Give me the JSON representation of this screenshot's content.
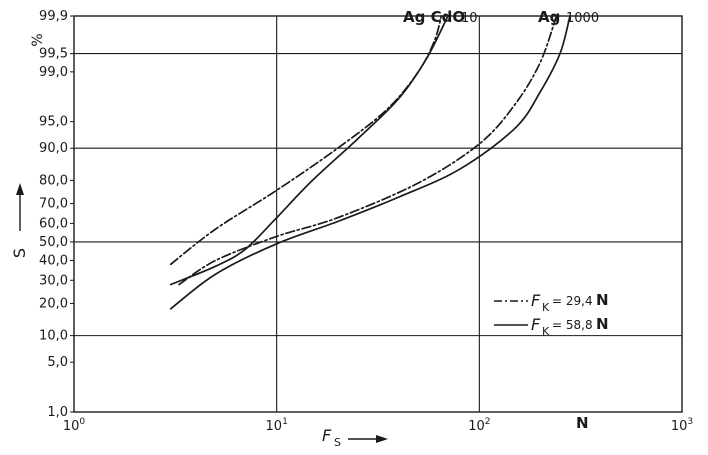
{
  "chart_data": {
    "type": "line",
    "title": "",
    "xscale": "log",
    "yscale": "probability",
    "xlim": [
      1,
      1000
    ],
    "ylim": [
      1.0,
      99.9
    ],
    "grid": true,
    "x_ticks": [
      {
        "value": 1,
        "base": "10",
        "exp": "0"
      },
      {
        "value": 10,
        "base": "10",
        "exp": "1"
      },
      {
        "value": 100,
        "base": "10",
        "exp": "2"
      },
      {
        "value": 1000,
        "base": "10",
        "exp": "3"
      }
    ],
    "y_ticks": [
      {
        "value": 1.0,
        "label": "1,0"
      },
      {
        "value": 5.0,
        "label": "5,0"
      },
      {
        "value": 10.0,
        "label": "10,0"
      },
      {
        "value": 20.0,
        "label": "20,0"
      },
      {
        "value": 30.0,
        "label": "30,0"
      },
      {
        "value": 40.0,
        "label": "40,0"
      },
      {
        "value": 50.0,
        "label": "50,0"
      },
      {
        "value": 60.0,
        "label": "60,0"
      },
      {
        "value": 70.0,
        "label": "70,0"
      },
      {
        "value": 80.0,
        "label": "80,0"
      },
      {
        "value": 90.0,
        "label": "90,0"
      },
      {
        "value": 95.0,
        "label": "95,0"
      },
      {
        "value": 99.0,
        "label": "99,0"
      },
      {
        "value": 99.5,
        "label": "99,5"
      },
      {
        "value": 99.9,
        "label": "99,9"
      }
    ],
    "y_gridlines": [
      10,
      50,
      90,
      99.5
    ],
    "x_gridlines": [
      10,
      100
    ],
    "xlabel": {
      "main": "F",
      "sub": "S"
    },
    "x_unit": "N",
    "ylabel": "S",
    "y_unit": "%",
    "series": [
      {
        "name": "Ag CdO 10",
        "style": "dashdot",
        "load": "29,4",
        "points": [
          [
            3,
            38
          ],
          [
            5,
            57
          ],
          [
            10,
            76
          ],
          [
            20,
            90
          ],
          [
            35,
            96.5
          ],
          [
            50,
            99
          ],
          [
            60,
            99.7
          ],
          [
            65,
            99.9
          ]
        ]
      },
      {
        "name": "Ag CdO 10",
        "style": "solid",
        "load": "58,8",
        "points": [
          [
            3,
            28
          ],
          [
            5,
            37
          ],
          [
            7,
            46
          ],
          [
            10,
            63
          ],
          [
            15,
            80
          ],
          [
            25,
            92
          ],
          [
            40,
            97.5
          ],
          [
            55,
            99.4
          ],
          [
            70,
            99.9
          ]
        ]
      },
      {
        "name": "Ag 1000",
        "style": "dashdot",
        "load": "29,4",
        "points": [
          [
            3.3,
            28
          ],
          [
            5,
            40
          ],
          [
            10,
            53
          ],
          [
            20,
            63
          ],
          [
            50,
            79
          ],
          [
            100,
            91
          ],
          [
            150,
            97
          ],
          [
            200,
            99.3
          ],
          [
            240,
            99.9
          ]
        ]
      },
      {
        "name": "Ag 1000",
        "style": "solid",
        "load": "58,8",
        "points": [
          [
            3,
            18
          ],
          [
            5,
            33
          ],
          [
            10,
            49
          ],
          [
            20,
            61
          ],
          [
            40,
            73
          ],
          [
            80,
            84
          ],
          [
            150,
            94
          ],
          [
            200,
            98
          ],
          [
            250,
            99.5
          ],
          [
            280,
            99.9
          ]
        ]
      }
    ],
    "annotations": [
      {
        "text": "Ag CdO 10",
        "pre": "Ag CdO",
        "num": "10"
      },
      {
        "text": "Ag 1000",
        "pre": "Ag",
        "num": "1000"
      }
    ],
    "legend": {
      "placement": "lower-right",
      "entries": [
        {
          "style": "dashdot",
          "prefix": "F",
          "sub": "K",
          "eq": "= 29,4",
          "unit": "N"
        },
        {
          "style": "solid",
          "prefix": "F",
          "sub": "K",
          "eq": "= 58,8",
          "unit": "N"
        }
      ]
    }
  }
}
